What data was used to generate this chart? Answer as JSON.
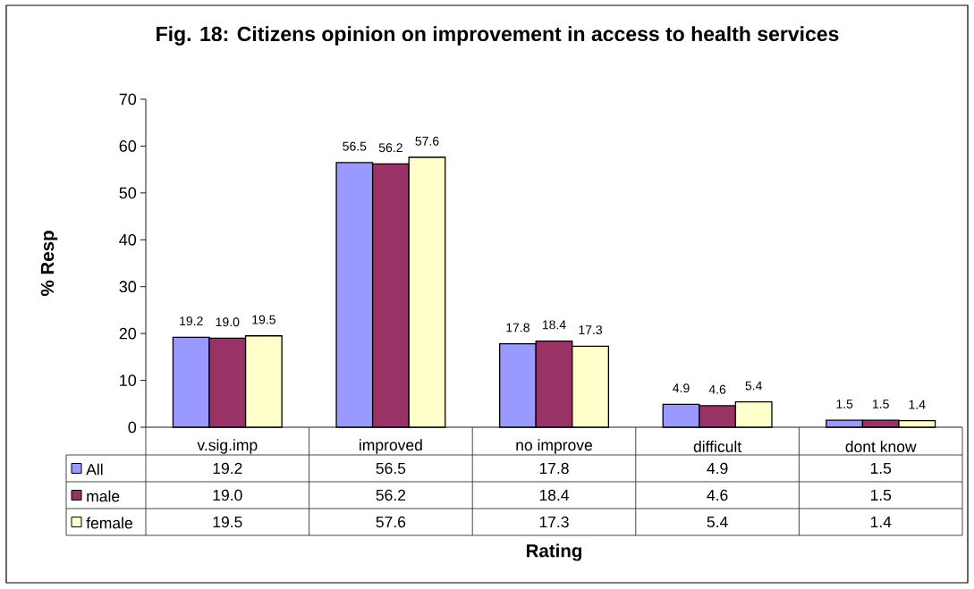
{
  "chart_data": {
    "type": "bar",
    "title": "Fig. 18: Citizens opinion on improvement in access to health services",
    "xlabel": "Rating",
    "ylabel": "% Resp",
    "categories": [
      "v.sig.imp",
      "improved",
      "no improve",
      "difficult",
      "dont know"
    ],
    "series": [
      {
        "name": "All",
        "color": "#9999ff",
        "values": [
          19.2,
          56.5,
          17.8,
          4.9,
          1.5
        ],
        "value_labels": [
          "19.2",
          "56.5",
          "17.8",
          "4.9",
          "1.5"
        ]
      },
      {
        "name": "male",
        "color": "#993366",
        "values": [
          19.0,
          56.2,
          18.4,
          4.6,
          1.5
        ],
        "value_labels": [
          "19.0",
          "56.2",
          "18.4",
          "4.6",
          "1.5"
        ]
      },
      {
        "name": "female",
        "color": "#ffffcc",
        "values": [
          19.5,
          57.6,
          17.3,
          5.4,
          1.4
        ],
        "value_labels": [
          "19.5",
          "57.6",
          "17.3",
          "5.4",
          "1.4"
        ]
      }
    ],
    "ylim": [
      0,
      70
    ],
    "yticks": [
      0,
      10,
      20,
      30,
      40,
      50,
      60,
      70
    ],
    "legend": "bottom left",
    "grid": false
  }
}
